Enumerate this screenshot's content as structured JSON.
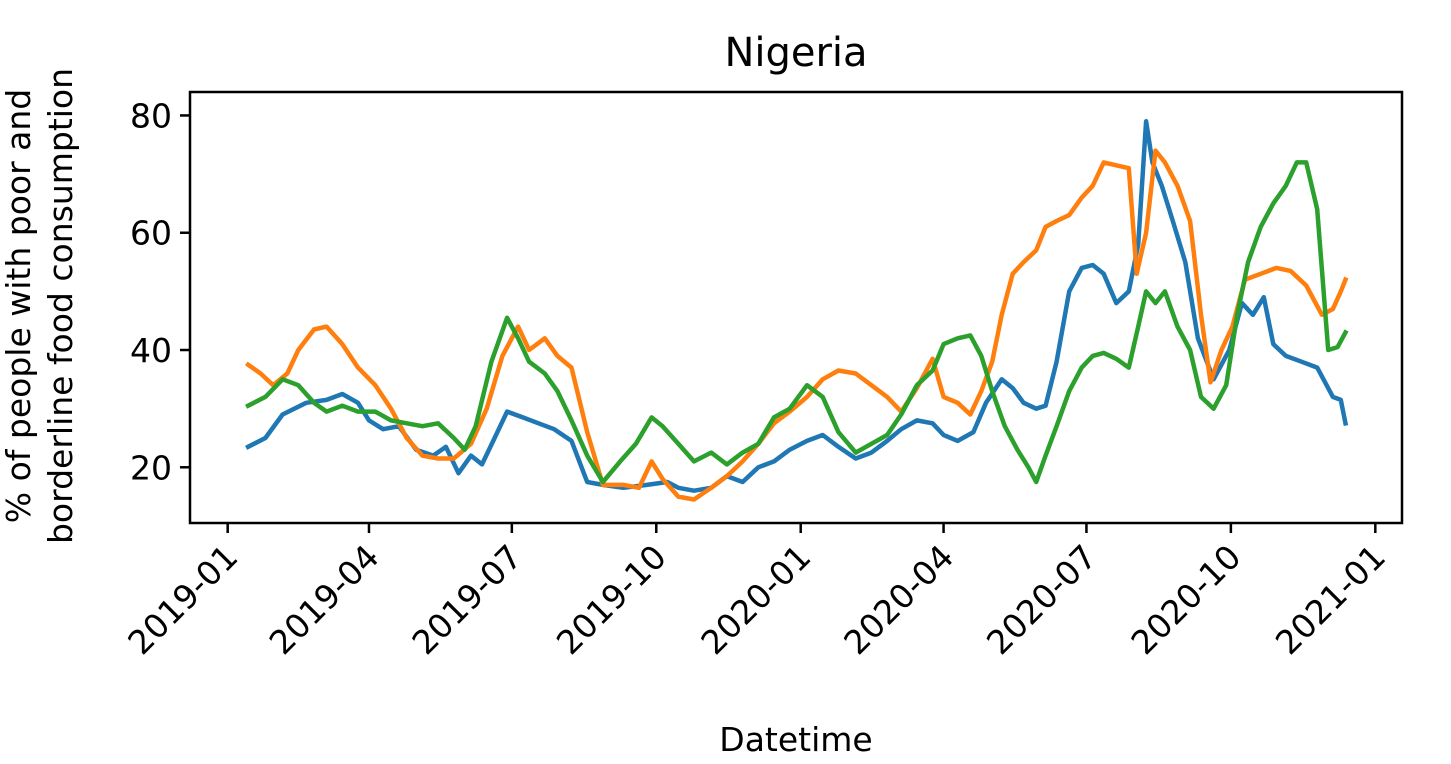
{
  "chart_data": {
    "type": "line",
    "title": "Nigeria",
    "xlabel": "Datetime",
    "ylabel_lines": [
      "% of people with poor and",
      "borderline food consumption"
    ],
    "x_ticks": [
      "2019-01",
      "2019-04",
      "2019-07",
      "2019-10",
      "2020-01",
      "2020-04",
      "2020-07",
      "2020-10",
      "2021-01"
    ],
    "y_ticks": [
      20,
      40,
      60,
      80
    ],
    "xlim": [
      "2018-12-08",
      "2021-01-18"
    ],
    "ylim": [
      10.5,
      84
    ],
    "grid": false,
    "legend": "none",
    "series": [
      {
        "color": "#1f77b4",
        "points": [
          [
            "2019-01-14",
            23.5
          ],
          [
            "2019-01-25",
            25
          ],
          [
            "2019-02-05",
            29
          ],
          [
            "2019-02-20",
            31
          ],
          [
            "2019-03-05",
            31.5
          ],
          [
            "2019-03-15",
            32.5
          ],
          [
            "2019-03-25",
            31
          ],
          [
            "2019-04-01",
            28
          ],
          [
            "2019-04-10",
            26.5
          ],
          [
            "2019-04-20",
            27
          ],
          [
            "2019-05-01",
            23
          ],
          [
            "2019-05-12",
            22
          ],
          [
            "2019-05-20",
            23.5
          ],
          [
            "2019-05-28",
            19
          ],
          [
            "2019-06-05",
            22
          ],
          [
            "2019-06-12",
            20.5
          ],
          [
            "2019-06-20",
            25
          ],
          [
            "2019-06-28",
            29.5
          ],
          [
            "2019-07-08",
            28.5
          ],
          [
            "2019-07-18",
            27.5
          ],
          [
            "2019-07-28",
            26.5
          ],
          [
            "2019-08-08",
            24.5
          ],
          [
            "2019-08-18",
            17.5
          ],
          [
            "2019-08-28",
            17
          ],
          [
            "2019-09-10",
            16.5
          ],
          [
            "2019-09-25",
            17
          ],
          [
            "2019-10-08",
            17.5
          ],
          [
            "2019-10-15",
            16.5
          ],
          [
            "2019-10-25",
            16
          ],
          [
            "2019-11-05",
            16.5
          ],
          [
            "2019-11-15",
            18.5
          ],
          [
            "2019-11-25",
            17.5
          ],
          [
            "2019-12-05",
            20
          ],
          [
            "2019-12-15",
            21
          ],
          [
            "2019-12-25",
            23
          ],
          [
            "2020-01-05",
            24.5
          ],
          [
            "2020-01-15",
            25.5
          ],
          [
            "2020-01-25",
            23.5
          ],
          [
            "2020-02-05",
            21.5
          ],
          [
            "2020-02-15",
            22.5
          ],
          [
            "2020-02-25",
            24.5
          ],
          [
            "2020-03-05",
            26.5
          ],
          [
            "2020-03-15",
            28
          ],
          [
            "2020-03-25",
            27.5
          ],
          [
            "2020-04-01",
            25.5
          ],
          [
            "2020-04-10",
            24.5
          ],
          [
            "2020-04-20",
            26
          ],
          [
            "2020-04-28",
            31
          ],
          [
            "2020-05-08",
            35
          ],
          [
            "2020-05-15",
            33.5
          ],
          [
            "2020-05-22",
            31
          ],
          [
            "2020-05-30",
            30
          ],
          [
            "2020-06-05",
            30.5
          ],
          [
            "2020-06-12",
            38
          ],
          [
            "2020-06-20",
            50
          ],
          [
            "2020-06-28",
            54
          ],
          [
            "2020-07-05",
            54.5
          ],
          [
            "2020-07-12",
            53
          ],
          [
            "2020-07-20",
            48
          ],
          [
            "2020-07-28",
            50
          ],
          [
            "2020-08-03",
            58
          ],
          [
            "2020-08-08",
            79
          ],
          [
            "2020-08-12",
            72
          ],
          [
            "2020-08-18",
            68
          ],
          [
            "2020-08-25",
            62
          ],
          [
            "2020-09-02",
            55
          ],
          [
            "2020-09-10",
            42
          ],
          [
            "2020-09-20",
            35
          ],
          [
            "2020-09-30",
            40
          ],
          [
            "2020-10-08",
            48
          ],
          [
            "2020-10-15",
            46
          ],
          [
            "2020-10-22",
            49
          ],
          [
            "2020-10-28",
            41
          ],
          [
            "2020-11-05",
            39
          ],
          [
            "2020-11-15",
            38
          ],
          [
            "2020-11-25",
            37
          ],
          [
            "2020-12-05",
            32
          ],
          [
            "2020-12-10",
            31.5
          ],
          [
            "2020-12-13",
            27.5
          ]
        ]
      },
      {
        "color": "#ff7f0e",
        "points": [
          [
            "2019-01-14",
            37.5
          ],
          [
            "2019-01-22",
            36
          ],
          [
            "2019-01-30",
            34
          ],
          [
            "2019-02-08",
            36
          ],
          [
            "2019-02-15",
            40
          ],
          [
            "2019-02-25",
            43.5
          ],
          [
            "2019-03-05",
            44
          ],
          [
            "2019-03-15",
            41
          ],
          [
            "2019-03-25",
            37
          ],
          [
            "2019-04-05",
            34
          ],
          [
            "2019-04-15",
            30
          ],
          [
            "2019-04-25",
            25
          ],
          [
            "2019-05-05",
            22
          ],
          [
            "2019-05-15",
            21.5
          ],
          [
            "2019-05-25",
            21.5
          ],
          [
            "2019-06-05",
            24
          ],
          [
            "2019-06-15",
            30
          ],
          [
            "2019-06-25",
            39
          ],
          [
            "2019-07-05",
            44
          ],
          [
            "2019-07-12",
            40
          ],
          [
            "2019-07-22",
            42
          ],
          [
            "2019-07-30",
            39
          ],
          [
            "2019-08-08",
            37
          ],
          [
            "2019-08-18",
            26
          ],
          [
            "2019-08-28",
            17
          ],
          [
            "2019-09-10",
            17
          ],
          [
            "2019-09-20",
            16.5
          ],
          [
            "2019-09-28",
            21
          ],
          [
            "2019-10-05",
            18
          ],
          [
            "2019-10-15",
            15
          ],
          [
            "2019-10-25",
            14.5
          ],
          [
            "2019-11-05",
            16.5
          ],
          [
            "2019-11-15",
            18.5
          ],
          [
            "2019-11-25",
            21
          ],
          [
            "2019-12-05",
            24
          ],
          [
            "2019-12-15",
            27.5
          ],
          [
            "2019-12-25",
            29.5
          ],
          [
            "2020-01-05",
            32
          ],
          [
            "2020-01-15",
            35
          ],
          [
            "2020-01-25",
            36.5
          ],
          [
            "2020-02-05",
            36
          ],
          [
            "2020-02-15",
            34
          ],
          [
            "2020-02-25",
            32
          ],
          [
            "2020-03-05",
            29.5
          ],
          [
            "2020-03-15",
            33.5
          ],
          [
            "2020-03-25",
            38.5
          ],
          [
            "2020-04-01",
            32
          ],
          [
            "2020-04-10",
            31
          ],
          [
            "2020-04-18",
            29
          ],
          [
            "2020-04-25",
            33
          ],
          [
            "2020-05-02",
            38
          ],
          [
            "2020-05-08",
            46
          ],
          [
            "2020-05-15",
            53
          ],
          [
            "2020-05-22",
            55
          ],
          [
            "2020-05-30",
            57
          ],
          [
            "2020-06-05",
            61
          ],
          [
            "2020-06-12",
            62
          ],
          [
            "2020-06-20",
            63
          ],
          [
            "2020-06-28",
            66
          ],
          [
            "2020-07-05",
            68
          ],
          [
            "2020-07-12",
            72
          ],
          [
            "2020-07-20",
            71.5
          ],
          [
            "2020-07-28",
            71
          ],
          [
            "2020-08-02",
            53
          ],
          [
            "2020-08-08",
            60
          ],
          [
            "2020-08-14",
            74
          ],
          [
            "2020-08-20",
            72
          ],
          [
            "2020-08-28",
            68
          ],
          [
            "2020-09-05",
            62
          ],
          [
            "2020-09-12",
            46
          ],
          [
            "2020-09-18",
            34.5
          ],
          [
            "2020-09-25",
            40
          ],
          [
            "2020-10-02",
            44
          ],
          [
            "2020-10-10",
            52
          ],
          [
            "2020-10-20",
            53
          ],
          [
            "2020-10-30",
            54
          ],
          [
            "2020-11-08",
            53.5
          ],
          [
            "2020-11-18",
            51
          ],
          [
            "2020-11-28",
            46
          ],
          [
            "2020-12-05",
            47
          ],
          [
            "2020-12-10",
            50
          ],
          [
            "2020-12-13",
            52
          ]
        ]
      },
      {
        "color": "#2ca02c",
        "points": [
          [
            "2019-01-14",
            30.5
          ],
          [
            "2019-01-25",
            32
          ],
          [
            "2019-02-05",
            35
          ],
          [
            "2019-02-15",
            34
          ],
          [
            "2019-02-25",
            31
          ],
          [
            "2019-03-05",
            29.5
          ],
          [
            "2019-03-15",
            30.5
          ],
          [
            "2019-03-25",
            29.5
          ],
          [
            "2019-04-05",
            29.5
          ],
          [
            "2019-04-15",
            28
          ],
          [
            "2019-04-25",
            27.5
          ],
          [
            "2019-05-05",
            27
          ],
          [
            "2019-05-15",
            27.5
          ],
          [
            "2019-05-25",
            25
          ],
          [
            "2019-06-01",
            23
          ],
          [
            "2019-06-08",
            27
          ],
          [
            "2019-06-18",
            38
          ],
          [
            "2019-06-28",
            45.5
          ],
          [
            "2019-07-05",
            42
          ],
          [
            "2019-07-12",
            38
          ],
          [
            "2019-07-22",
            36
          ],
          [
            "2019-07-30",
            33
          ],
          [
            "2019-08-08",
            28
          ],
          [
            "2019-08-18",
            22
          ],
          [
            "2019-08-28",
            17.5
          ],
          [
            "2019-09-08",
            21
          ],
          [
            "2019-09-18",
            24
          ],
          [
            "2019-09-28",
            28.5
          ],
          [
            "2019-10-05",
            27
          ],
          [
            "2019-10-15",
            24
          ],
          [
            "2019-10-25",
            21
          ],
          [
            "2019-11-05",
            22.5
          ],
          [
            "2019-11-15",
            20.5
          ],
          [
            "2019-11-25",
            22.5
          ],
          [
            "2019-12-05",
            24
          ],
          [
            "2019-12-15",
            28.5
          ],
          [
            "2019-12-25",
            30
          ],
          [
            "2020-01-05",
            34
          ],
          [
            "2020-01-15",
            32
          ],
          [
            "2020-01-25",
            26
          ],
          [
            "2020-02-05",
            22.5
          ],
          [
            "2020-02-15",
            24
          ],
          [
            "2020-02-25",
            25.5
          ],
          [
            "2020-03-05",
            29
          ],
          [
            "2020-03-15",
            34
          ],
          [
            "2020-03-25",
            36.5
          ],
          [
            "2020-04-01",
            41
          ],
          [
            "2020-04-10",
            42
          ],
          [
            "2020-04-18",
            42.5
          ],
          [
            "2020-04-25",
            39
          ],
          [
            "2020-05-02",
            33
          ],
          [
            "2020-05-10",
            27
          ],
          [
            "2020-05-18",
            23
          ],
          [
            "2020-05-25",
            20
          ],
          [
            "2020-05-30",
            17.5
          ],
          [
            "2020-06-05",
            22
          ],
          [
            "2020-06-12",
            27
          ],
          [
            "2020-06-20",
            33
          ],
          [
            "2020-06-28",
            37
          ],
          [
            "2020-07-05",
            39
          ],
          [
            "2020-07-12",
            39.5
          ],
          [
            "2020-07-20",
            38.5
          ],
          [
            "2020-07-28",
            37
          ],
          [
            "2020-08-03",
            44
          ],
          [
            "2020-08-08",
            50
          ],
          [
            "2020-08-14",
            48
          ],
          [
            "2020-08-20",
            50
          ],
          [
            "2020-08-28",
            44
          ],
          [
            "2020-09-05",
            40
          ],
          [
            "2020-09-12",
            32
          ],
          [
            "2020-09-20",
            30
          ],
          [
            "2020-09-28",
            34
          ],
          [
            "2020-10-05",
            46
          ],
          [
            "2020-10-12",
            55
          ],
          [
            "2020-10-20",
            61
          ],
          [
            "2020-10-28",
            65
          ],
          [
            "2020-11-05",
            68
          ],
          [
            "2020-11-12",
            72
          ],
          [
            "2020-11-18",
            72
          ],
          [
            "2020-11-25",
            64
          ],
          [
            "2020-12-02",
            40
          ],
          [
            "2020-12-08",
            40.5
          ],
          [
            "2020-12-13",
            43
          ]
        ]
      }
    ]
  }
}
